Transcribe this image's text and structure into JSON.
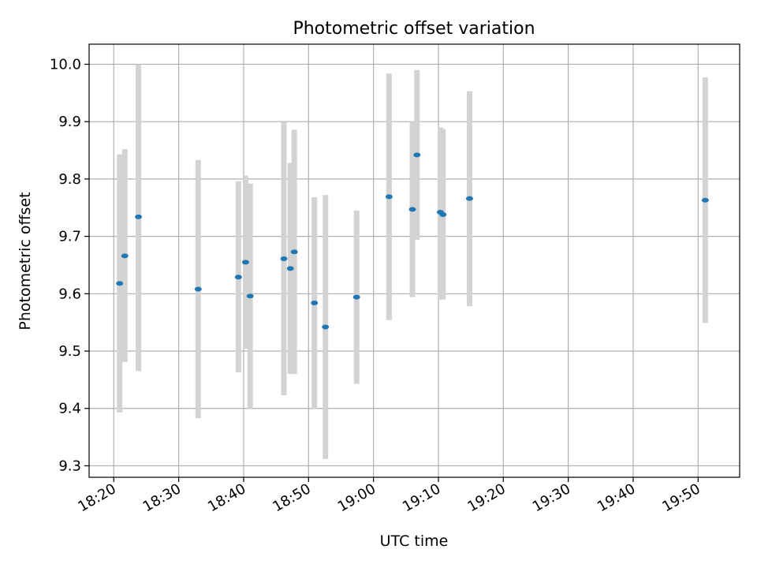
{
  "chart_data": {
    "type": "scatter",
    "title": "Photometric offset variation",
    "xlabel": "UTC time",
    "ylabel": "Photometric offset",
    "x_ticks": [
      "18:20",
      "18:30",
      "18:40",
      "18:50",
      "19:00",
      "19:10",
      "19:20",
      "19:30",
      "19:40",
      "19:50"
    ],
    "y_ticks": [
      9.3,
      9.4,
      9.5,
      9.6,
      9.7,
      9.8,
      9.9,
      10.0
    ],
    "y_tick_labels": [
      "9.3",
      "9.4",
      "9.5",
      "9.6",
      "9.7",
      "9.8",
      "9.9",
      "10.0"
    ],
    "xlim": [
      "18:16:12",
      "19:56:24"
    ],
    "ylim": [
      9.28,
      10.035
    ],
    "grid": true,
    "marker_color": "#1f77b4",
    "errorbar_color": "#d3d3d3",
    "points": [
      {
        "t": "18:20:54",
        "y": 9.618,
        "lo": 9.393,
        "hi": 9.843
      },
      {
        "t": "18:21:42",
        "y": 9.666,
        "lo": 9.481,
        "hi": 9.852
      },
      {
        "t": "18:23:48",
        "y": 9.734,
        "lo": 9.465,
        "hi": 10.0
      },
      {
        "t": "18:33:00",
        "y": 9.608,
        "lo": 9.383,
        "hi": 9.833
      },
      {
        "t": "18:39:12",
        "y": 9.629,
        "lo": 9.463,
        "hi": 9.796
      },
      {
        "t": "18:40:18",
        "y": 9.655,
        "lo": 9.504,
        "hi": 9.806
      },
      {
        "t": "18:41:00",
        "y": 9.596,
        "lo": 9.4,
        "hi": 9.792
      },
      {
        "t": "18:46:12",
        "y": 9.661,
        "lo": 9.423,
        "hi": 9.899
      },
      {
        "t": "18:47:12",
        "y": 9.644,
        "lo": 9.46,
        "hi": 9.828
      },
      {
        "t": "18:47:48",
        "y": 9.673,
        "lo": 9.46,
        "hi": 9.886
      },
      {
        "t": "18:50:54",
        "y": 9.584,
        "lo": 9.4,
        "hi": 9.768
      },
      {
        "t": "18:52:36",
        "y": 9.542,
        "lo": 9.312,
        "hi": 9.772
      },
      {
        "t": "18:57:24",
        "y": 9.594,
        "lo": 9.443,
        "hi": 9.745
      },
      {
        "t": "19:02:24",
        "y": 9.769,
        "lo": 9.554,
        "hi": 9.984
      },
      {
        "t": "19:06:00",
        "y": 9.747,
        "lo": 9.594,
        "hi": 9.9
      },
      {
        "t": "19:06:42",
        "y": 9.842,
        "lo": 9.694,
        "hi": 9.99
      },
      {
        "t": "19:10:18",
        "y": 9.742,
        "lo": 9.59,
        "hi": 9.89
      },
      {
        "t": "19:10:42",
        "y": 9.738,
        "lo": 9.59,
        "hi": 9.887
      },
      {
        "t": "19:14:48",
        "y": 9.766,
        "lo": 9.578,
        "hi": 9.953
      },
      {
        "t": "19:51:06",
        "y": 9.763,
        "lo": 9.549,
        "hi": 9.977
      }
    ]
  }
}
